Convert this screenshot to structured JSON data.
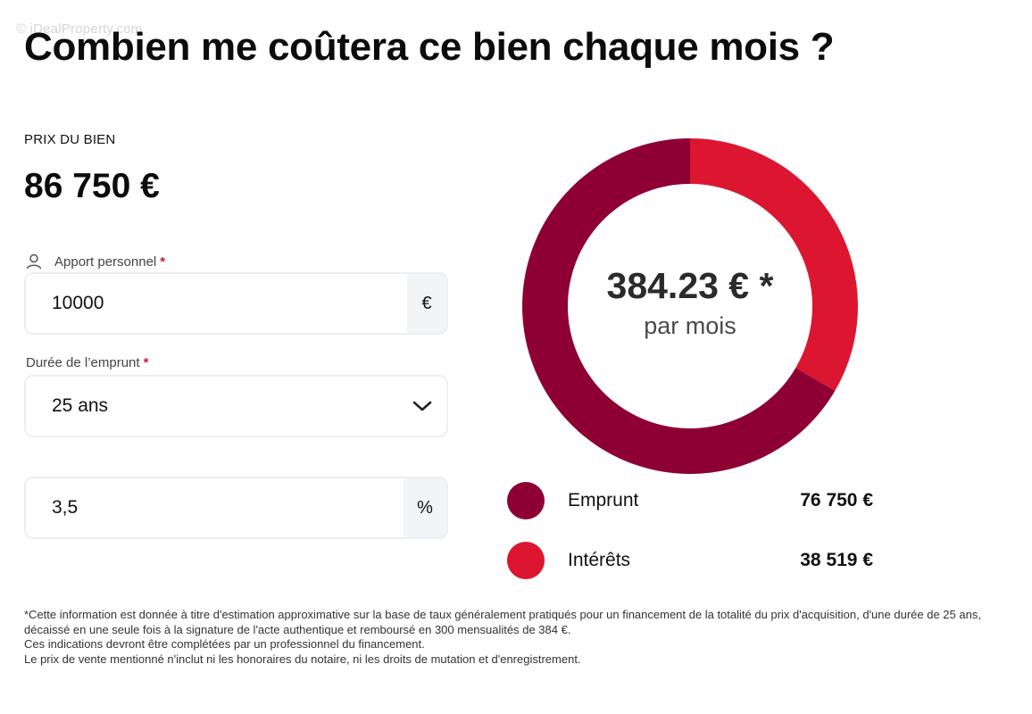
{
  "watermark": "© iDealProperty.com",
  "page_title": "Combien me coûtera ce bien chaque mois ?",
  "price": {
    "label": "PRIX DU BIEN",
    "value": "86 750 €"
  },
  "form": {
    "apport": {
      "label": "Apport personnel",
      "required_mark": "*",
      "value": "10000",
      "unit": "€",
      "icon": "user-icon"
    },
    "duree": {
      "label": "Durée de l’emprunt",
      "required_mark": "*",
      "selected": "25 ans",
      "icon": "chevron-down-icon"
    },
    "taux": {
      "value": "3,5",
      "unit": "%"
    }
  },
  "summary": {
    "monthly_amount": "384.23 € *",
    "monthly_label": "par mois"
  },
  "legend": [
    {
      "label": "Emprunt",
      "value": "76 750 €",
      "color": "#8e0033"
    },
    {
      "label": "Intérêts",
      "value": "38 519 €",
      "color": "#dc1630"
    }
  ],
  "chart_data": {
    "type": "pie",
    "categories": [
      "Emprunt",
      "Intérêts"
    ],
    "values": [
      76750,
      38519
    ],
    "colors": [
      "#8e0033",
      "#dc1630"
    ],
    "title": "",
    "center_text": "384.23 € *",
    "center_subtext": "par mois"
  },
  "disclaimer": [
    "*Cette information est donnée à titre d'estimation approximative sur la base de taux généralement pratiqués pour un financement de la totalité du prix d'acquisition, d'une durée de 25 ans, décaissé en une seule fois à la signature de l'acte authentique et remboursé en 300 mensualités de 384 €.",
    "Ces indications devront être complétées par un professionnel du financement.",
    "Le prix de vente mentionné n'inclut ni les honoraires du notaire, ni les droits de mutation et d'enregistrement."
  ]
}
